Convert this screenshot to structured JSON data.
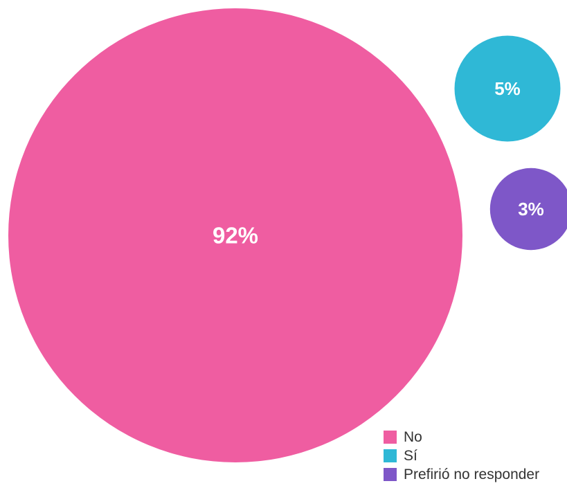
{
  "chart_data": {
    "type": "bubble",
    "series": [
      {
        "name": "No",
        "value": 92,
        "label": "92%",
        "color": "#ef5da1"
      },
      {
        "name": "Sí",
        "value": 5,
        "label": "5%",
        "color": "#2fb8d6"
      },
      {
        "name": "Prefirió no responder",
        "value": 3,
        "label": "3%",
        "color": "#7e57c8"
      }
    ],
    "legend": {
      "position": "bottom-right",
      "items": [
        {
          "label": "No",
          "color": "#ef5da1"
        },
        {
          "label": "Sí",
          "color": "#2fb8d6"
        },
        {
          "label": "Prefirió no responder",
          "color": "#7e57c8"
        }
      ]
    }
  }
}
